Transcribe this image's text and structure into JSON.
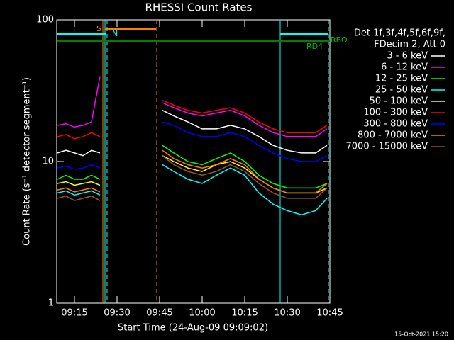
{
  "chart_data": {
    "type": "line",
    "title": "RHESSI Count Rates",
    "x_label": "Start Time (24-Aug-09 09:09:02)",
    "y_label": "Count Rate (s⁻¹ detector segment⁻¹)",
    "legend_header": [
      "Det 1f,3f,4f,5f,6f,9f,",
      "FDecim 2, Att 0"
    ],
    "footer": "15-Oct-2021 15:20",
    "annotations": [
      "S",
      "N",
      "RD4",
      "RBO"
    ],
    "log_y": true,
    "xlim": [
      8.75,
      105
    ],
    "xticks": [
      {
        "value": 15,
        "label": "09:15"
      },
      {
        "value": 30,
        "label": "09:30"
      },
      {
        "value": 45,
        "label": "09:45"
      },
      {
        "value": 60,
        "label": "10:00"
      },
      {
        "value": 75,
        "label": "10:15"
      },
      {
        "value": 90,
        "label": "10:30"
      },
      {
        "value": 105,
        "label": "10:45"
      }
    ],
    "ylim": [
      1,
      100
    ],
    "yticks": [
      1,
      10,
      100
    ],
    "x": [
      9,
      12,
      15,
      18,
      21,
      24,
      30,
      46,
      50,
      55,
      60,
      65,
      70,
      75,
      80,
      85,
      90,
      95,
      100,
      104
    ],
    "series": [
      {
        "name": "3 - 6 keV",
        "color": "#ffffff",
        "values": [
          11.5,
          12,
          11.5,
          11,
          12,
          11.5,
          null,
          23,
          21,
          19,
          17,
          17,
          18,
          17,
          15,
          13,
          12,
          11.5,
          11.5,
          13
        ]
      },
      {
        "name": "6 - 12 keV",
        "color": "#ff00ff",
        "values": [
          18,
          18.5,
          17.5,
          18,
          19,
          40,
          null,
          26,
          24,
          22,
          21,
          22,
          23,
          21,
          18,
          16,
          15,
          15,
          15,
          17
        ]
      },
      {
        "name": "12 - 25 keV",
        "color": "#00ff00",
        "values": [
          7.5,
          8,
          7.5,
          7.5,
          8,
          7.5,
          null,
          13,
          11.5,
          10,
          9.5,
          10.5,
          11.5,
          10,
          8,
          7,
          6.5,
          6.5,
          6.5,
          7
        ]
      },
      {
        "name": "25 - 50 keV",
        "color": "#00ffff",
        "values": [
          6,
          6.2,
          5.8,
          6,
          6.2,
          5.8,
          null,
          9.5,
          8.5,
          7.5,
          7,
          8,
          9,
          8,
          6,
          5,
          4.5,
          4.2,
          4.5,
          5.5
        ]
      },
      {
        "name": "50 - 100 keV",
        "color": "#ffff00",
        "values": [
          7,
          7.2,
          6.8,
          7,
          7.2,
          6.8,
          null,
          11,
          10,
          9,
          8.5,
          9.5,
          10,
          9,
          7.5,
          6.5,
          6,
          6,
          6,
          6.5
        ]
      },
      {
        "name": "100 - 300 keV",
        "color": "#ff0000",
        "values": [
          15,
          15.5,
          14.5,
          15,
          16,
          15,
          null,
          27,
          25,
          23,
          22,
          23,
          24,
          22,
          19,
          17,
          16,
          16,
          16,
          18
        ]
      },
      {
        "name": "300 - 800 keV",
        "color": "#0000ff",
        "values": [
          9,
          9.3,
          8.8,
          9,
          9.5,
          9,
          null,
          19,
          18,
          16,
          15,
          15,
          16,
          15,
          13,
          11.5,
          10.5,
          10,
          10,
          11
        ]
      },
      {
        "name": "800 - 7000 keV",
        "color": "#ff8000",
        "values": [
          6.3,
          6.5,
          6.1,
          6.3,
          6.5,
          6.1,
          null,
          12,
          10.5,
          9.5,
          9,
          9.5,
          10.5,
          9.5,
          7.5,
          6.5,
          6,
          6,
          6,
          7
        ]
      },
      {
        "name": "7000 - 15000 keV",
        "color": "#a0522d",
        "values": [
          5.5,
          5.7,
          5.3,
          5.5,
          5.7,
          5.3,
          null,
          11,
          9.5,
          8.5,
          8,
          8.5,
          9.5,
          8.5,
          7,
          6,
          5.5,
          5.5,
          5.5,
          6.5
        ]
      }
    ]
  }
}
